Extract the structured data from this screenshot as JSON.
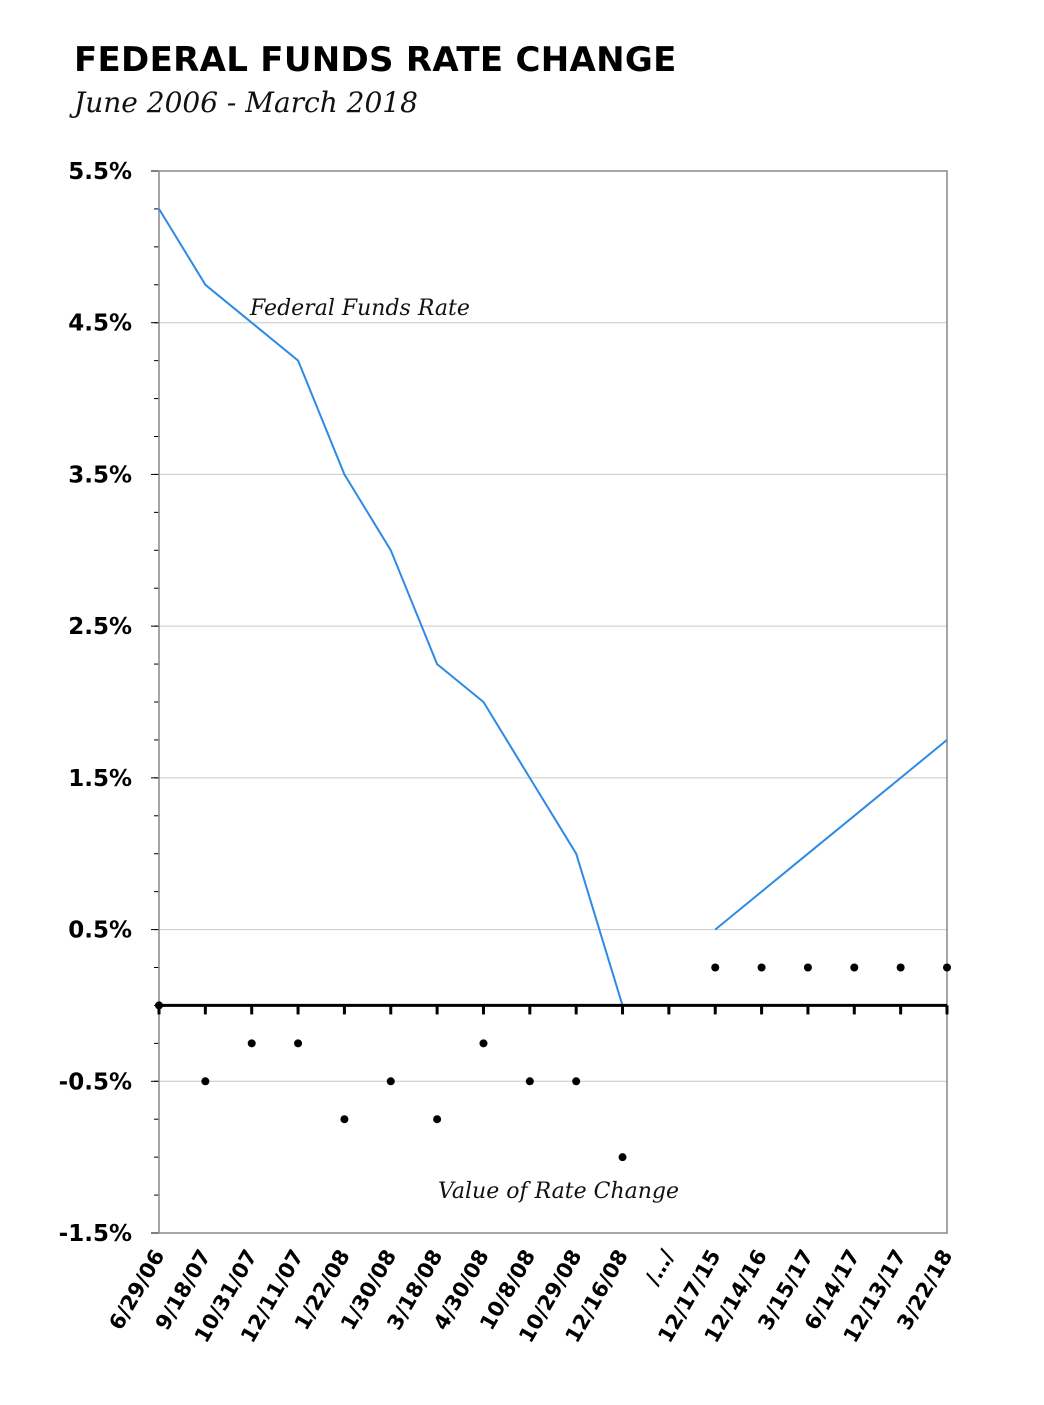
{
  "chart_data": {
    "type": "line",
    "title": "FEDERAL FUNDS RATE CHANGE",
    "subtitle": "June 2006 - March 2018",
    "categories": [
      "6/29/06",
      "9/18/07",
      "10/31/07",
      "12/11/07",
      "1/22/08",
      "1/30/08",
      "3/18/08",
      "4/30/08",
      "10/8/08",
      "10/29/08",
      "12/16/08",
      "/…/",
      "12/17/15",
      "12/14/16",
      "3/15/17",
      "6/14/17",
      "12/13/17",
      "3/22/18"
    ],
    "ylim": [
      -1.5,
      5.5
    ],
    "yticks": [
      5.5,
      4.5,
      3.5,
      2.5,
      1.5,
      0.5,
      -0.5,
      -1.5
    ],
    "ytick_labels": [
      "5.5%",
      "4.5%",
      "3.5%",
      "2.5%",
      "1.5%",
      "0.5%",
      "-0.5%",
      "-1.5%"
    ],
    "grid": "horizontal",
    "series": [
      {
        "name": "Federal Funds Rate",
        "kind": "line",
        "color": "#2e8ae6",
        "values": [
          5.25,
          4.75,
          4.5,
          4.25,
          3.5,
          3.0,
          2.25,
          2.0,
          1.5,
          1.0,
          0.0,
          null,
          0.5,
          0.75,
          1.0,
          1.25,
          1.5,
          1.75
        ]
      },
      {
        "name": "Value of Rate Change",
        "kind": "scatter",
        "color": "#000000",
        "values": [
          0.0,
          -0.5,
          -0.25,
          -0.25,
          -0.75,
          -0.5,
          -0.75,
          -0.25,
          -0.5,
          -0.5,
          -1.0,
          null,
          0.25,
          0.25,
          0.25,
          0.25,
          0.25,
          0.25
        ]
      }
    ],
    "annotations": [
      "Federal Funds Rate",
      "Value of Rate Change"
    ]
  }
}
